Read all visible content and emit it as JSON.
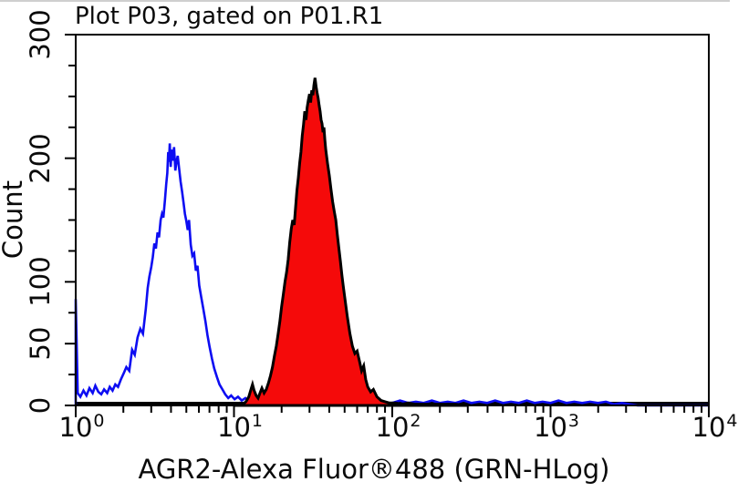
{
  "chart_data": {
    "type": "area",
    "title": "Plot P03, gated on P01.R1",
    "xlabel": "AGR2-Alexa Fluor®488 (GRN-HLog)",
    "ylabel": "Count",
    "x_scale": "log10",
    "xlim": [
      1,
      10000
    ],
    "ylim": [
      0,
      300
    ],
    "grid": false,
    "legend": "none",
    "axis_color": "#000000",
    "baseline_color": "#000000",
    "xticks": [
      {
        "base": "10",
        "exp": "0",
        "value": 1
      },
      {
        "base": "10",
        "exp": "1",
        "value": 10
      },
      {
        "base": "10",
        "exp": "2",
        "value": 100
      },
      {
        "base": "10",
        "exp": "3",
        "value": 1000
      },
      {
        "base": "10",
        "exp": "4",
        "value": 10000
      }
    ],
    "yticks": [
      {
        "label": "0",
        "value": 0
      },
      {
        "label": "50",
        "value": 50
      },
      {
        "label": "100",
        "value": 100
      },
      {
        "label": "200",
        "value": 200
      },
      {
        "label": "300",
        "value": 300
      }
    ],
    "y_minor_tick_step": 25,
    "series": [
      {
        "name": "control-open-histogram",
        "stroke": "#0d0df2",
        "fill": "none",
        "peak": {
          "x": 3.9,
          "count": 212
        },
        "points": [
          [
            1.0,
            0
          ],
          [
            1.0,
            86
          ],
          [
            1.03,
            10
          ],
          [
            1.07,
            7
          ],
          [
            1.12,
            12
          ],
          [
            1.17,
            8
          ],
          [
            1.22,
            14
          ],
          [
            1.28,
            10
          ],
          [
            1.33,
            16
          ],
          [
            1.39,
            11
          ],
          [
            1.45,
            9
          ],
          [
            1.51,
            13
          ],
          [
            1.58,
            10
          ],
          [
            1.64,
            15
          ],
          [
            1.71,
            12
          ],
          [
            1.78,
            17
          ],
          [
            1.85,
            15
          ],
          [
            1.93,
            21
          ],
          [
            2.01,
            26
          ],
          [
            2.09,
            31
          ],
          [
            2.18,
            28
          ],
          [
            2.27,
            45
          ],
          [
            2.36,
            41
          ],
          [
            2.46,
            55
          ],
          [
            2.56,
            62
          ],
          [
            2.66,
            58
          ],
          [
            2.77,
            78
          ],
          [
            2.85,
            95
          ],
          [
            2.92,
            104
          ],
          [
            3.0,
            112
          ],
          [
            3.07,
            120
          ],
          [
            3.14,
            131
          ],
          [
            3.21,
            127
          ],
          [
            3.29,
            140
          ],
          [
            3.36,
            136
          ],
          [
            3.44,
            150
          ],
          [
            3.51,
            155
          ],
          [
            3.58,
            152
          ],
          [
            3.66,
            166
          ],
          [
            3.73,
            179
          ],
          [
            3.79,
            188
          ],
          [
            3.84,
            205
          ],
          [
            3.88,
            197
          ],
          [
            3.93,
            212
          ],
          [
            3.98,
            193
          ],
          [
            4.04,
            207
          ],
          [
            4.11,
            198
          ],
          [
            4.18,
            209
          ],
          [
            4.26,
            190
          ],
          [
            4.33,
            197
          ],
          [
            4.41,
            202
          ],
          [
            4.5,
            192
          ],
          [
            4.6,
            181
          ],
          [
            4.7,
            173
          ],
          [
            4.8,
            164
          ],
          [
            4.9,
            155
          ],
          [
            5.0,
            149
          ],
          [
            5.1,
            142
          ],
          [
            5.2,
            150
          ],
          [
            5.33,
            130
          ],
          [
            5.46,
            121
          ],
          [
            5.6,
            123
          ],
          [
            5.74,
            109
          ],
          [
            5.88,
            113
          ],
          [
            6.03,
            97
          ],
          [
            6.2,
            88
          ],
          [
            6.4,
            78
          ],
          [
            6.6,
            68
          ],
          [
            6.8,
            57
          ],
          [
            7.0,
            48
          ],
          [
            7.25,
            38
          ],
          [
            7.5,
            30
          ],
          [
            7.8,
            23
          ],
          [
            8.1,
            17
          ],
          [
            8.45,
            13
          ],
          [
            8.8,
            9
          ],
          [
            9.2,
            6
          ],
          [
            9.6,
            8
          ],
          [
            10.1,
            5
          ],
          [
            10.6,
            7
          ],
          [
            11.2,
            4
          ],
          [
            11.8,
            6
          ],
          [
            12.4,
            3
          ],
          [
            13.1,
            5
          ],
          [
            13.8,
            2
          ],
          [
            14.6,
            4
          ],
          [
            15.4,
            2
          ],
          [
            16.5,
            1
          ],
          [
            18,
            1
          ],
          [
            22,
            1
          ],
          [
            30,
            1
          ],
          [
            45,
            1
          ],
          [
            70,
            1
          ],
          [
            100,
            2
          ],
          [
            112,
            4
          ],
          [
            126,
            2
          ],
          [
            141,
            3
          ],
          [
            158,
            2
          ],
          [
            178,
            4
          ],
          [
            200,
            2
          ],
          [
            224,
            3
          ],
          [
            251,
            2
          ],
          [
            282,
            4
          ],
          [
            316,
            2
          ],
          [
            355,
            3
          ],
          [
            398,
            2
          ],
          [
            447,
            4
          ],
          [
            501,
            2
          ],
          [
            562,
            3
          ],
          [
            631,
            2
          ],
          [
            708,
            4
          ],
          [
            794,
            2
          ],
          [
            891,
            3
          ],
          [
            1000,
            2
          ],
          [
            1122,
            4
          ],
          [
            1259,
            2
          ],
          [
            1413,
            3
          ],
          [
            1585,
            2
          ],
          [
            1778,
            3
          ],
          [
            1995,
            2
          ],
          [
            2239,
            3
          ],
          [
            2512,
            1
          ],
          [
            2818,
            2
          ],
          [
            3162,
            1
          ],
          [
            3548,
            0
          ],
          [
            10000,
            0
          ]
        ]
      },
      {
        "name": "agr2-filled-histogram",
        "stroke": "#000000",
        "fill": "#f50a0a",
        "peak": {
          "x": 32.5,
          "count": 265
        },
        "points": [
          [
            10,
            0
          ],
          [
            10.4,
            1
          ],
          [
            10.9,
            2
          ],
          [
            11.4,
            1
          ],
          [
            11.9,
            3
          ],
          [
            12.4,
            7
          ],
          [
            12.8,
            13
          ],
          [
            13.1,
            17
          ],
          [
            13.4,
            12
          ],
          [
            13.8,
            8
          ],
          [
            14.2,
            6
          ],
          [
            14.6,
            10
          ],
          [
            15.0,
            14
          ],
          [
            15.5,
            10
          ],
          [
            16.0,
            13
          ],
          [
            16.5,
            18
          ],
          [
            17.0,
            24
          ],
          [
            17.5,
            31
          ],
          [
            18.0,
            40
          ],
          [
            18.5,
            48
          ],
          [
            19.0,
            58
          ],
          [
            19.5,
            68
          ],
          [
            20.0,
            80
          ],
          [
            20.5,
            90
          ],
          [
            21.0,
            100
          ],
          [
            21.5,
            108
          ],
          [
            22.0,
            118
          ],
          [
            22.5,
            132
          ],
          [
            23.0,
            143
          ],
          [
            23.5,
            150
          ],
          [
            24.0,
            146
          ],
          [
            24.5,
            160
          ],
          [
            25.0,
            174
          ],
          [
            25.5,
            184
          ],
          [
            26.0,
            196
          ],
          [
            26.5,
            205
          ],
          [
            27.0,
            218
          ],
          [
            27.5,
            227
          ],
          [
            28.0,
            238
          ],
          [
            28.5,
            231
          ],
          [
            29.0,
            241
          ],
          [
            29.5,
            247
          ],
          [
            30.0,
            252
          ],
          [
            30.5,
            245
          ],
          [
            31.0,
            255
          ],
          [
            31.5,
            251
          ],
          [
            32.0,
            259
          ],
          [
            32.5,
            265
          ],
          [
            33.0,
            258
          ],
          [
            33.5,
            253
          ],
          [
            34.0,
            249
          ],
          [
            34.5,
            243
          ],
          [
            35.0,
            238
          ],
          [
            35.5,
            231
          ],
          [
            36.0,
            228
          ],
          [
            36.5,
            221
          ],
          [
            37.0,
            225
          ],
          [
            37.5,
            215
          ],
          [
            38.0,
            207
          ],
          [
            39.0,
            196
          ],
          [
            40.0,
            186
          ],
          [
            41.0,
            175
          ],
          [
            42.0,
            165
          ],
          [
            43.0,
            157
          ],
          [
            44.0,
            150
          ],
          [
            45.0,
            138
          ],
          [
            46.0,
            127
          ],
          [
            47.0,
            117
          ],
          [
            48.0,
            106
          ],
          [
            49.0,
            97
          ],
          [
            50.0,
            88
          ],
          [
            52.0,
            72
          ],
          [
            54.0,
            58
          ],
          [
            56.0,
            48
          ],
          [
            58.0,
            42
          ],
          [
            60.0,
            44
          ],
          [
            62.0,
            36
          ],
          [
            64.0,
            28
          ],
          [
            66.0,
            32
          ],
          [
            68.0,
            21
          ],
          [
            70.0,
            15
          ],
          [
            73.0,
            11
          ],
          [
            76.0,
            13
          ],
          [
            80.0,
            7
          ],
          [
            85.0,
            4
          ],
          [
            90.0,
            3
          ],
          [
            96.0,
            2
          ],
          [
            105,
            2
          ],
          [
            115,
            1
          ],
          [
            126,
            2
          ],
          [
            140,
            1
          ],
          [
            160,
            1
          ],
          [
            185,
            1
          ],
          [
            215,
            1
          ],
          [
            250,
            1
          ],
          [
            300,
            0
          ]
        ]
      }
    ]
  }
}
